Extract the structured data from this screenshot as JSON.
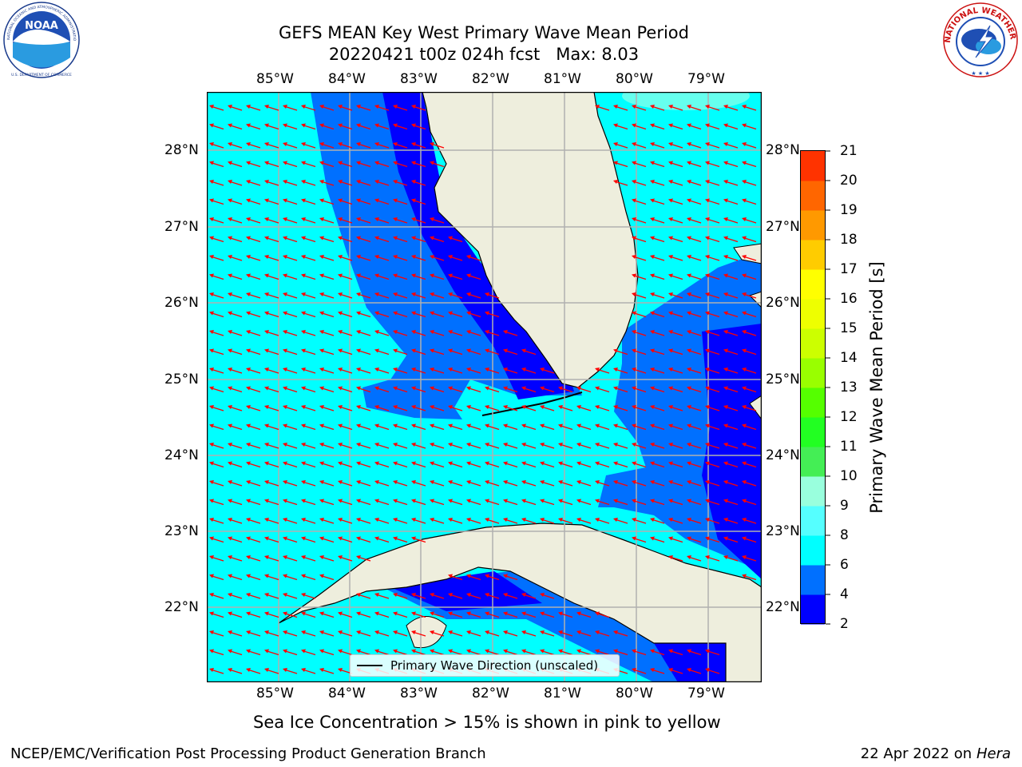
{
  "title": {
    "line1": "GEFS MEAN Key West Primary Wave Mean Period",
    "line2": "20220421 t00z 024h fcst   Max: 8.03"
  },
  "logos": {
    "noaa_text": "NOAA",
    "noaa_ring_top": "NATIONAL OCEANIC AND ATMOSPHERIC ADMINISTRATION",
    "noaa_ring_bottom": "U.S. DEPARTMENT OF COMMERCE",
    "nws_ring": "NATIONAL WEATHER SERVICE"
  },
  "map": {
    "lon_labels": [
      "85°W",
      "84°W",
      "83°W",
      "82°W",
      "81°W",
      "80°W",
      "79°W"
    ],
    "lat_labels": [
      "28°N",
      "27°N",
      "26°N",
      "25°N",
      "24°N",
      "23°N",
      "22°N"
    ],
    "legend_label": "Primary Wave Direction (unscaled)",
    "colors": {
      "land": "#eeeedd",
      "coast": "#000000",
      "gridline": "#b0b0b0",
      "arrow": "#ff0000",
      "no_data": "#ffffff"
    }
  },
  "colorbar": {
    "label": "Primary Wave Mean Period [s]",
    "ticks": [
      "2",
      "4",
      "6",
      "8",
      "9",
      "10",
      "11",
      "12",
      "13",
      "14",
      "15",
      "16",
      "17",
      "18",
      "19",
      "20",
      "21"
    ],
    "colors": [
      "#0000ff",
      "#0070ff",
      "#00ffff",
      "#55ffff",
      "#99ffdd",
      "#44ee55",
      "#22ff22",
      "#55ff00",
      "#99ff00",
      "#ccff00",
      "#eeff00",
      "#ffff00",
      "#ffcc00",
      "#ff9900",
      "#ff6600",
      "#ff3300",
      "#ff0000"
    ]
  },
  "bottom_note": "Sea Ice Concentration > 15% is shown in pink to yellow",
  "footer": {
    "left": "NCEP/EMC/Verification Post Processing Product Generation Branch",
    "date": "22 Apr 2022 on ",
    "host": "Hera"
  }
}
